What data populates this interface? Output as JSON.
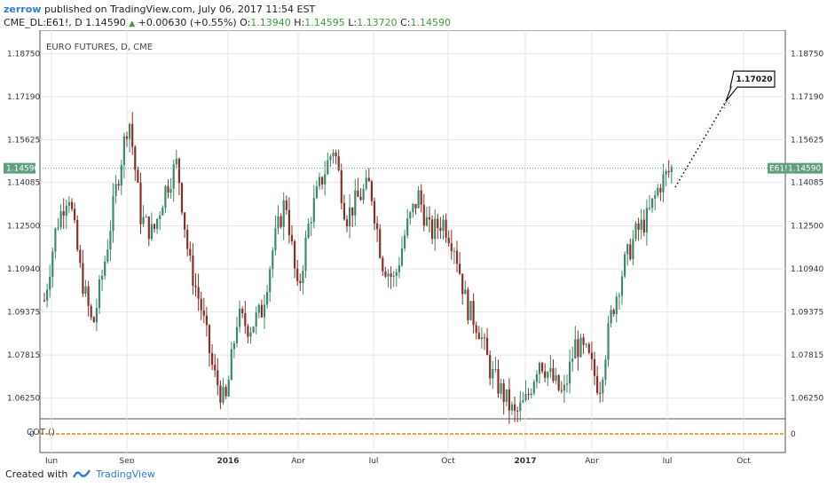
{
  "header": {
    "user": "zerrow",
    "published": "published on TradingView.com, July 06, 2017 11:54 EST",
    "symbol": "CME_DL:E61!, D",
    "last": "1.14590",
    "change": "+0.00630 (+0.55%)",
    "o_label": "O:",
    "o": "1.13940",
    "h_label": "H:",
    "h": "1.14595",
    "l_label": "L:",
    "l": "1.13720",
    "c_label": "C:",
    "c": "1.14590"
  },
  "footer": {
    "created": "Created with",
    "brand": "TradingView"
  },
  "colors": {
    "up": "#3d8a6a",
    "down": "#8a2f28",
    "grid": "#e6e6e6",
    "cot": "#ff7f00",
    "price_tag": "#5f9e7e"
  },
  "chart_data": {
    "type": "candlestick",
    "title": "EURO FUTURES, D, CME",
    "y_ticks": [
      "1.18750",
      "1.17190",
      "1.15625",
      "1.14085",
      "1.12500",
      "1.10940",
      "1.09375",
      "1.07815",
      "1.06250"
    ],
    "ylim": [
      1.055,
      1.196
    ],
    "x_ticks": [
      "Jun",
      "Sep",
      "2016",
      "Apr",
      "Jul",
      "Oct",
      "2017",
      "Apr",
      "Jul",
      "Oct"
    ],
    "x_tick_index": [
      0,
      1,
      2,
      3,
      4,
      5,
      6,
      7,
      8,
      9
    ],
    "current_price": "1.14590",
    "price_tag": "E61!",
    "annotation": "1.17020",
    "annotation_value": 1.1702,
    "projection": {
      "from_date": "Jul 2017",
      "to_date": "Sep 2017",
      "from_value": 1.139,
      "to_value": 1.1702
    },
    "price_path": [
      {
        "d": "Jun 2015",
        "v": 1.098
      },
      {
        "d": "Jun 2015",
        "v": 1.125
      },
      {
        "d": "Jul 2015",
        "v": 1.138
      },
      {
        "d": "Jul 2015",
        "v": 1.108
      },
      {
        "d": "Aug 2015",
        "v": 1.088
      },
      {
        "d": "Aug 2015",
        "v": 1.112
      },
      {
        "d": "Aug 2015",
        "v": 1.14
      },
      {
        "d": "Aug 2015",
        "v": 1.165
      },
      {
        "d": "Sep 2015",
        "v": 1.128
      },
      {
        "d": "Sep 2015",
        "v": 1.122
      },
      {
        "d": "Oct 2015",
        "v": 1.138
      },
      {
        "d": "Oct 2015",
        "v": 1.148
      },
      {
        "d": "Oct 2015",
        "v": 1.112
      },
      {
        "d": "Nov 2015",
        "v": 1.095
      },
      {
        "d": "Nov 2015",
        "v": 1.072
      },
      {
        "d": "Dec 2015",
        "v": 1.06
      },
      {
        "d": "Dec 2015",
        "v": 1.092
      },
      {
        "d": "Jan 2016",
        "v": 1.088
      },
      {
        "d": "Jan 2016",
        "v": 1.094
      },
      {
        "d": "Feb 2016",
        "v": 1.118
      },
      {
        "d": "Feb 2016",
        "v": 1.135
      },
      {
        "d": "Mar 2016",
        "v": 1.1
      },
      {
        "d": "Mar 2016",
        "v": 1.128
      },
      {
        "d": "Apr 2016",
        "v": 1.142
      },
      {
        "d": "May 2016",
        "v": 1.154
      },
      {
        "d": "May 2016",
        "v": 1.128
      },
      {
        "d": "Jun 2016",
        "v": 1.135
      },
      {
        "d": "Jun 2016",
        "v": 1.14
      },
      {
        "d": "Jul 2016",
        "v": 1.112
      },
      {
        "d": "Jul 2016",
        "v": 1.105
      },
      {
        "d": "Aug 2016",
        "v": 1.124
      },
      {
        "d": "Aug 2016",
        "v": 1.136
      },
      {
        "d": "Sep 2016",
        "v": 1.122
      },
      {
        "d": "Sep 2016",
        "v": 1.127
      },
      {
        "d": "Oct 2016",
        "v": 1.118
      },
      {
        "d": "Oct 2016",
        "v": 1.096
      },
      {
        "d": "Nov 2016",
        "v": 1.088
      },
      {
        "d": "Nov 2016",
        "v": 1.072
      },
      {
        "d": "Dec 2016",
        "v": 1.064
      },
      {
        "d": "Dec 2016",
        "v": 1.056
      },
      {
        "d": "Jan 2017",
        "v": 1.062
      },
      {
        "d": "Jan 2017",
        "v": 1.077
      },
      {
        "d": "Feb 2017",
        "v": 1.07
      },
      {
        "d": "Feb 2017",
        "v": 1.063
      },
      {
        "d": "Mar 2017",
        "v": 1.082
      },
      {
        "d": "Mar 2017",
        "v": 1.078
      },
      {
        "d": "Apr 2017",
        "v": 1.066
      },
      {
        "d": "Apr 2017",
        "v": 1.093
      },
      {
        "d": "May 2017",
        "v": 1.11
      },
      {
        "d": "May 2017",
        "v": 1.122
      },
      {
        "d": "Jun 2017",
        "v": 1.128
      },
      {
        "d": "Jun 2017",
        "v": 1.14
      },
      {
        "d": "Jul 2017",
        "v": 1.1459
      }
    ],
    "indicator": {
      "name": "COT ()",
      "value": 0,
      "tick": "0"
    }
  }
}
